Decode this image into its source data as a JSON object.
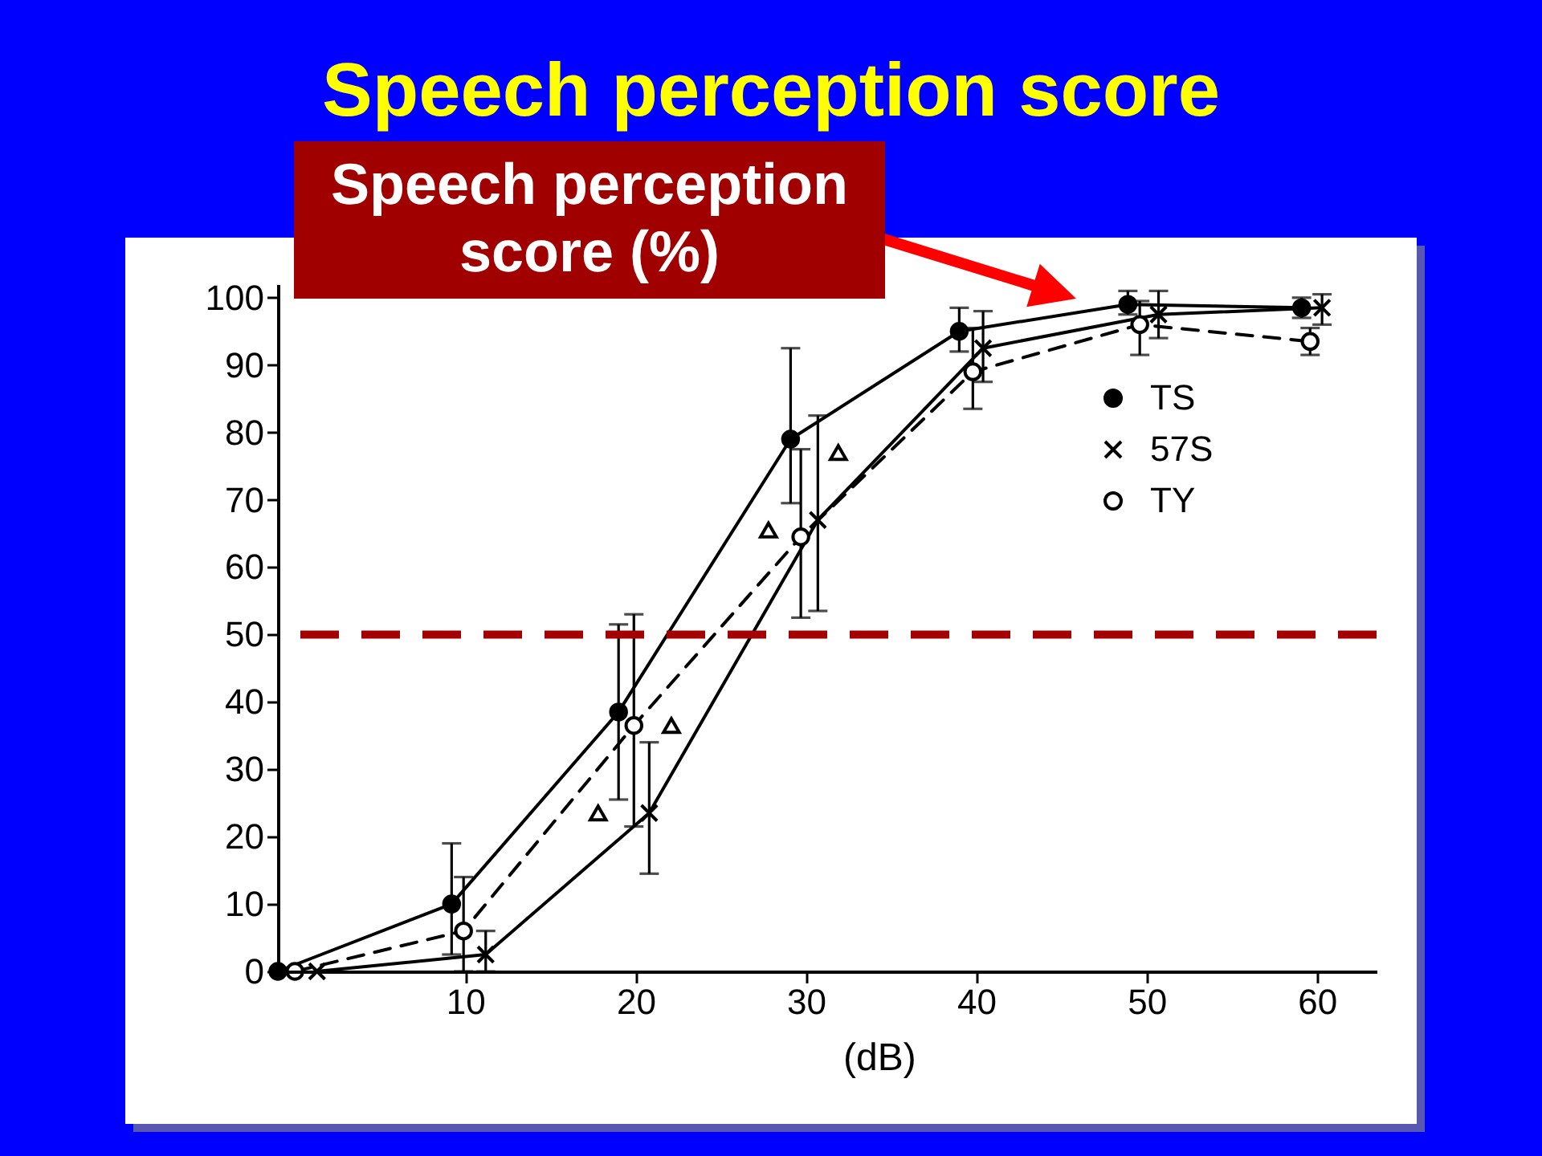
{
  "chart_data": {
    "type": "line",
    "title": "Speech perception score",
    "xlabel": "(dB)",
    "ylabel": "Speech perception score (%)",
    "xlim": [
      -1,
      63.5
    ],
    "ylim": [
      0,
      102
    ],
    "xticks": [
      10,
      20,
      30,
      40,
      50,
      60
    ],
    "yticks": [
      0,
      10,
      20,
      30,
      40,
      50,
      60,
      70,
      80,
      90,
      100
    ],
    "legend": "top right",
    "series": [
      {
        "name": "TS",
        "color": "#000000",
        "marker": "circle",
        "line_style": "solid",
        "x": [
          -1,
          9.2,
          19,
          29.1,
          39,
          48.9,
          59.1
        ],
        "values": [
          0,
          10,
          38.5,
          79,
          95,
          99,
          98.5
        ],
        "errors": [
          null,
          [
            2.5,
            19
          ],
          [
            25.5,
            51.5
          ],
          [
            69.5,
            92.5
          ],
          [
            92,
            98.5
          ],
          [
            97.5,
            101
          ],
          [
            97,
            100
          ]
        ]
      },
      {
        "name": "57S",
        "color": "#000000",
        "marker": "cross",
        "line_style": "solid",
        "x": [
          1.3,
          11.2,
          20.8,
          30.7,
          40.4,
          50.7,
          60.3
        ],
        "values": [
          0,
          2.5,
          23.5,
          67,
          92.5,
          97.5,
          98.5
        ],
        "errors": [
          null,
          [
            0,
            6
          ],
          [
            14.5,
            34
          ],
          [
            53.5,
            82.5
          ],
          [
            87.5,
            98
          ],
          [
            94,
            101
          ],
          [
            96,
            100.5
          ]
        ]
      },
      {
        "name": "TY",
        "color": "#000000",
        "marker": "circle",
        "line_style": "dashed",
        "x": [
          0,
          9.9,
          19.9,
          29.7,
          39.8,
          49.6,
          59.6
        ],
        "values": [
          0,
          6,
          36.5,
          64.5,
          89,
          96,
          93.5
        ],
        "errors": [
          null,
          [
            0,
            14
          ],
          [
            21.5,
            53
          ],
          [
            52.5,
            77.5
          ],
          [
            83.5,
            95.5
          ],
          [
            91.5,
            99.5
          ],
          [
            91.5,
            95.5
          ]
        ]
      },
      {
        "type": "scatter",
        "color": "#000000",
        "marker": "triangle",
        "x": [
          17.8,
          22.1,
          27.8,
          31.9
        ],
        "values": [
          23.5,
          36.5,
          65.5,
          77
        ]
      }
    ],
    "ref_lines": [
      {
        "axis": "y",
        "value": 50,
        "color": "#a50000",
        "line_style": "dashed"
      }
    ]
  }
}
